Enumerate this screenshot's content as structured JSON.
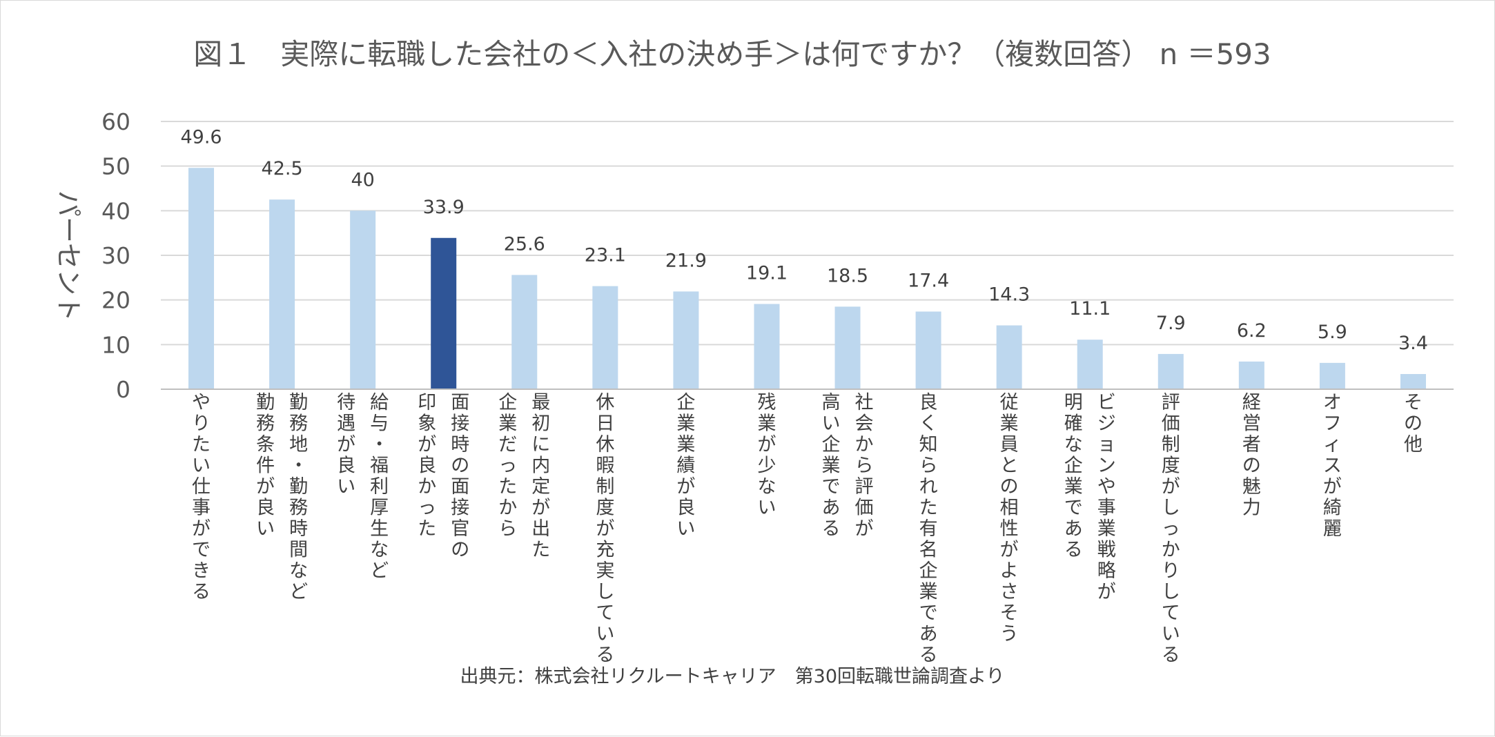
{
  "chart_data": {
    "type": "bar",
    "title": "図１　実際に転職した会社の＜入社の決め手＞は何ですか？（複数回答） n ＝593",
    "ylabel": "パーセント",
    "xlabel": "",
    "ylim": [
      0,
      60
    ],
    "yticks": [
      0,
      10,
      20,
      30,
      40,
      50,
      60
    ],
    "grid": true,
    "legend": "none",
    "source": "出典元：株式会社リクルートキャリア　第30回転職世論調査より",
    "colors": {
      "bar": "#bdd7ee",
      "highlight": "#2f5597",
      "grid": "#d9d9d9",
      "axis": "#bfbfbf"
    },
    "highlight_index": 3,
    "categories": [
      [
        "やりたい仕事ができる"
      ],
      [
        "勤務地・勤務時間など",
        "勤務条件が良い"
      ],
      [
        "給与・福利厚生など",
        "待遇が良い"
      ],
      [
        "面接時の面接官の",
        "印象が良かった"
      ],
      [
        "最初に内定が出た",
        "企業だったから"
      ],
      [
        "休日休暇制度が充実している"
      ],
      [
        "企業業績が良い"
      ],
      [
        "残業が少ない"
      ],
      [
        "社会から評価が",
        "高い企業である"
      ],
      [
        "良く知られた有名企業である"
      ],
      [
        "従業員との相性がよさそう"
      ],
      [
        "ビジョンや事業戦略が",
        "明確な企業である"
      ],
      [
        "評価制度がしっかりしている"
      ],
      [
        "経営者の魅力"
      ],
      [
        "オフィスが綺麗"
      ],
      [
        "その他"
      ]
    ],
    "values": [
      49.6,
      42.5,
      40,
      33.9,
      25.6,
      23.1,
      21.9,
      19.1,
      18.5,
      17.4,
      14.3,
      11.1,
      7.9,
      6.2,
      5.9,
      3.4
    ]
  }
}
